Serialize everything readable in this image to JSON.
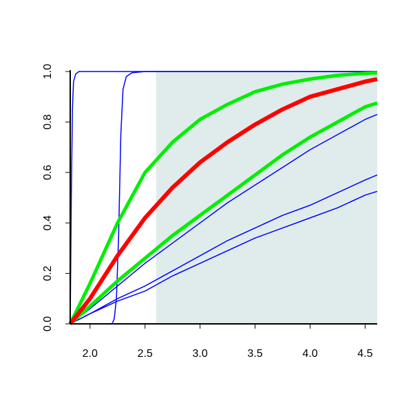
{
  "chart_data": {
    "type": "line",
    "xlim": [
      1.82,
      4.61
    ],
    "ylim": [
      0,
      1
    ],
    "xticks": [
      {
        "value": 2,
        "label": "2.0"
      },
      {
        "value": 2.5,
        "label": "2.5"
      },
      {
        "value": 3,
        "label": "3.0"
      },
      {
        "value": 3.5,
        "label": "3.5"
      },
      {
        "value": 4,
        "label": "4.0"
      },
      {
        "value": 4.5,
        "label": "4.5"
      }
    ],
    "yticks": [
      {
        "value": 0,
        "label": "0.0"
      },
      0.2,
      0.4,
      0.6,
      0.8,
      {
        "value": 1,
        "label": "1.0"
      }
    ],
    "shaded_region": {
      "xmin": 2.6,
      "xmax": 4.61,
      "color": "#dfeceb"
    },
    "series": [
      {
        "color": "#0000ff",
        "width": 1.5,
        "x": [
          1.82,
          1.83,
          1.84,
          1.85,
          1.87,
          1.9,
          2.5,
          3.5,
          4.61
        ],
        "values": [
          0,
          0.5,
          0.85,
          0.96,
          0.99,
          1,
          1,
          1,
          1
        ]
      },
      {
        "color": "#0000ff",
        "width": 1.5,
        "x": [
          1.82,
          2.2,
          2.22,
          2.24,
          2.26,
          2.27,
          2.28,
          2.3,
          2.33,
          2.38,
          2.5,
          3.5,
          4.61
        ],
        "values": [
          0,
          0,
          0.02,
          0.1,
          0.35,
          0.55,
          0.75,
          0.93,
          0.98,
          0.995,
          1,
          1,
          1
        ]
      },
      {
        "color": "#0000ff",
        "width": 1.5,
        "x": [
          1.82,
          2.0,
          2.25,
          2.5,
          2.75,
          3.0,
          3.25,
          3.5,
          3.75,
          4.0,
          4.25,
          4.5,
          4.61
        ],
        "values": [
          0,
          0.06,
          0.15,
          0.24,
          0.32,
          0.4,
          0.48,
          0.55,
          0.62,
          0.69,
          0.75,
          0.81,
          0.83
        ]
      },
      {
        "color": "#0000ff",
        "width": 1.5,
        "x": [
          1.82,
          2.0,
          2.25,
          2.5,
          2.75,
          3.0,
          3.25,
          3.5,
          3.75,
          4.0,
          4.25,
          4.5,
          4.61
        ],
        "values": [
          0,
          0.04,
          0.1,
          0.15,
          0.21,
          0.27,
          0.33,
          0.38,
          0.43,
          0.47,
          0.52,
          0.57,
          0.59
        ]
      },
      {
        "color": "#0000ff",
        "width": 1.5,
        "x": [
          1.82,
          2.0,
          2.25,
          2.5,
          2.75,
          3.0,
          3.25,
          3.5,
          3.75,
          4.0,
          4.25,
          4.5,
          4.61
        ],
        "values": [
          0,
          0.04,
          0.09,
          0.13,
          0.19,
          0.24,
          0.29,
          0.34,
          0.38,
          0.42,
          0.46,
          0.51,
          0.525
        ]
      },
      {
        "color": "#00ee00",
        "width": 5,
        "x": [
          1.82,
          2.0,
          2.25,
          2.5,
          2.75,
          3.0,
          3.25,
          3.5,
          3.75,
          4.0,
          4.25,
          4.5,
          4.61
        ],
        "values": [
          0,
          0.07,
          0.17,
          0.26,
          0.35,
          0.43,
          0.51,
          0.59,
          0.67,
          0.74,
          0.8,
          0.86,
          0.875
        ]
      },
      {
        "color": "#00ee00",
        "width": 5,
        "x": [
          1.82,
          2.0,
          2.25,
          2.5,
          2.75,
          3.0,
          3.25,
          3.5,
          3.75,
          4.0,
          4.25,
          4.5,
          4.61
        ],
        "values": [
          0,
          0.16,
          0.4,
          0.6,
          0.72,
          0.81,
          0.87,
          0.92,
          0.95,
          0.97,
          0.985,
          0.993,
          0.995
        ]
      },
      {
        "color": "#ff0000",
        "width": 6,
        "x": [
          1.82,
          2.0,
          2.25,
          2.5,
          2.75,
          3.0,
          3.25,
          3.5,
          3.75,
          4.0,
          4.25,
          4.5,
          4.61
        ],
        "values": [
          0,
          0.1,
          0.27,
          0.42,
          0.54,
          0.64,
          0.72,
          0.79,
          0.85,
          0.9,
          0.93,
          0.96,
          0.97
        ]
      }
    ]
  }
}
